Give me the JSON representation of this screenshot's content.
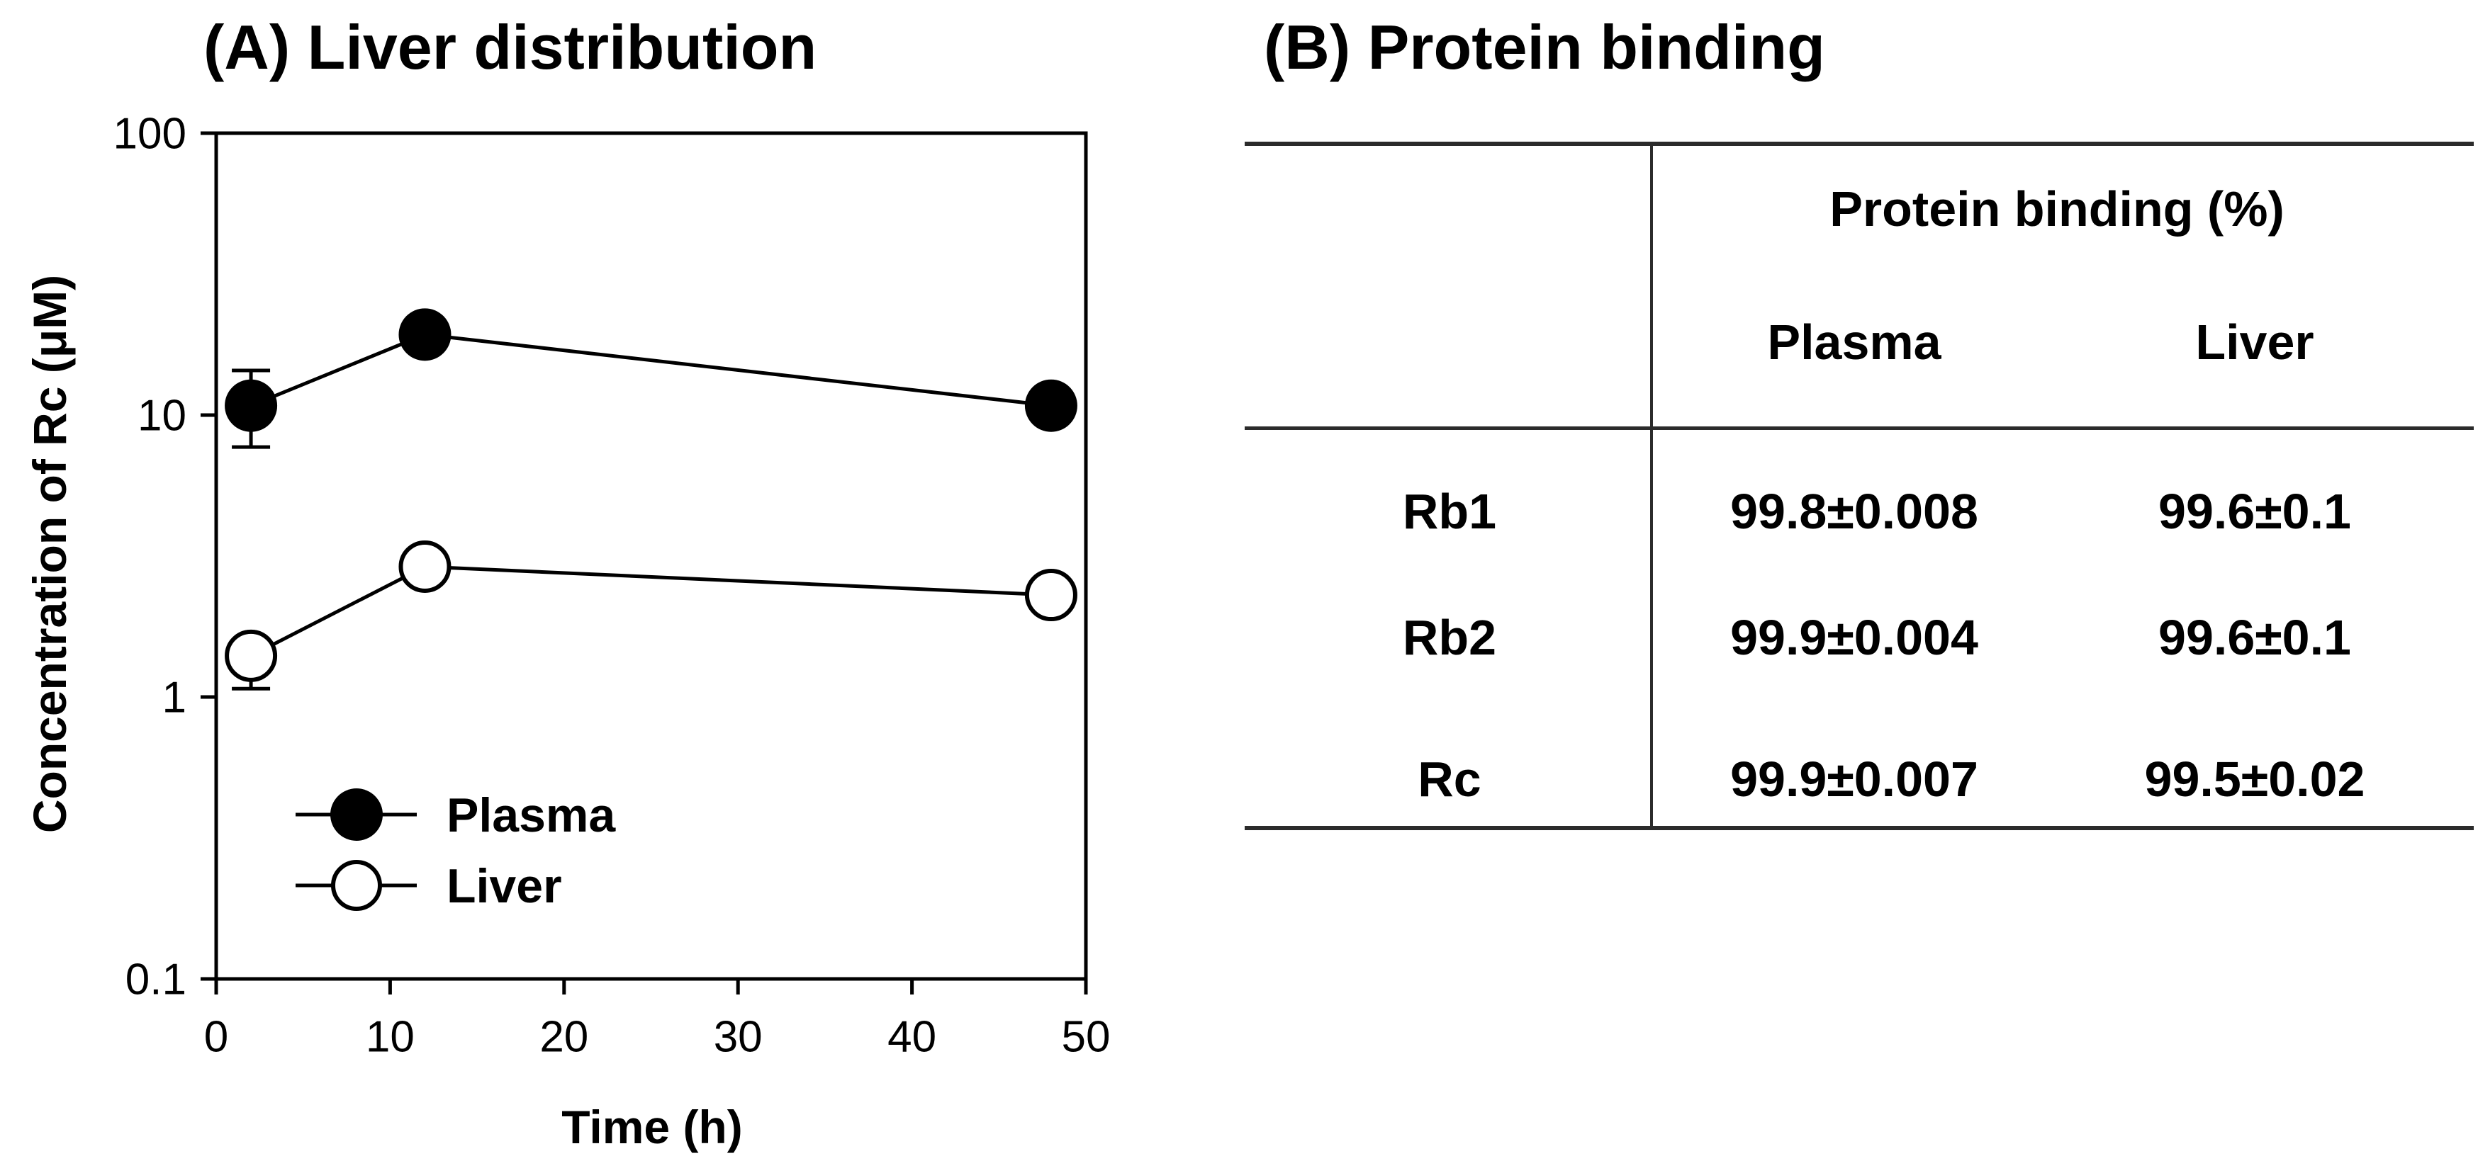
{
  "colors": {
    "ink": "#000000",
    "paper": "#ffffff",
    "rule": "#2b2b2b"
  },
  "panelA": {
    "title": "(A) Liver distribution"
  },
  "panelB": {
    "title": "(B) Protein binding",
    "table": {
      "group_header": "Protein binding (%)",
      "col_headers": [
        "Plasma",
        "Liver"
      ],
      "rows": [
        {
          "label": "Rb1",
          "plasma": "99.8±0.008",
          "liver": "99.6±0.1"
        },
        {
          "label": "Rb2",
          "plasma": "99.9±0.004",
          "liver": "99.6±0.1"
        },
        {
          "label": "Rc",
          "plasma": "99.9±0.007",
          "liver": "99.5±0.02"
        }
      ]
    }
  },
  "chart_data": {
    "type": "line",
    "title": "(A) Liver distribution",
    "xlabel": "Time (h)",
    "ylabel": "Concentration of Rc (μM)",
    "x_scale": "linear",
    "y_scale": "log",
    "xlim": [
      0,
      50
    ],
    "ylim": [
      0.1,
      100
    ],
    "x_ticks": [
      0,
      10,
      20,
      30,
      40,
      50
    ],
    "y_ticks": [
      100,
      10,
      1,
      0.1
    ],
    "grid": false,
    "legend_position": "inside lower-left",
    "series": [
      {
        "name": "Plasma",
        "marker": "filled-circle",
        "color": "#000000",
        "x": [
          2,
          12,
          48
        ],
        "y": [
          10.8,
          19.3,
          10.8
        ],
        "yerr_up": [
          3.6,
          0,
          0
        ],
        "yerr_down": [
          3.1,
          0,
          0
        ]
      },
      {
        "name": "Liver",
        "marker": "open-circle",
        "color": "#000000",
        "x": [
          2,
          12,
          48
        ],
        "y": [
          1.4,
          2.9,
          2.3
        ],
        "yerr_up": [
          0,
          0,
          0
        ],
        "yerr_down": [
          0.33,
          0,
          0
        ]
      }
    ]
  }
}
